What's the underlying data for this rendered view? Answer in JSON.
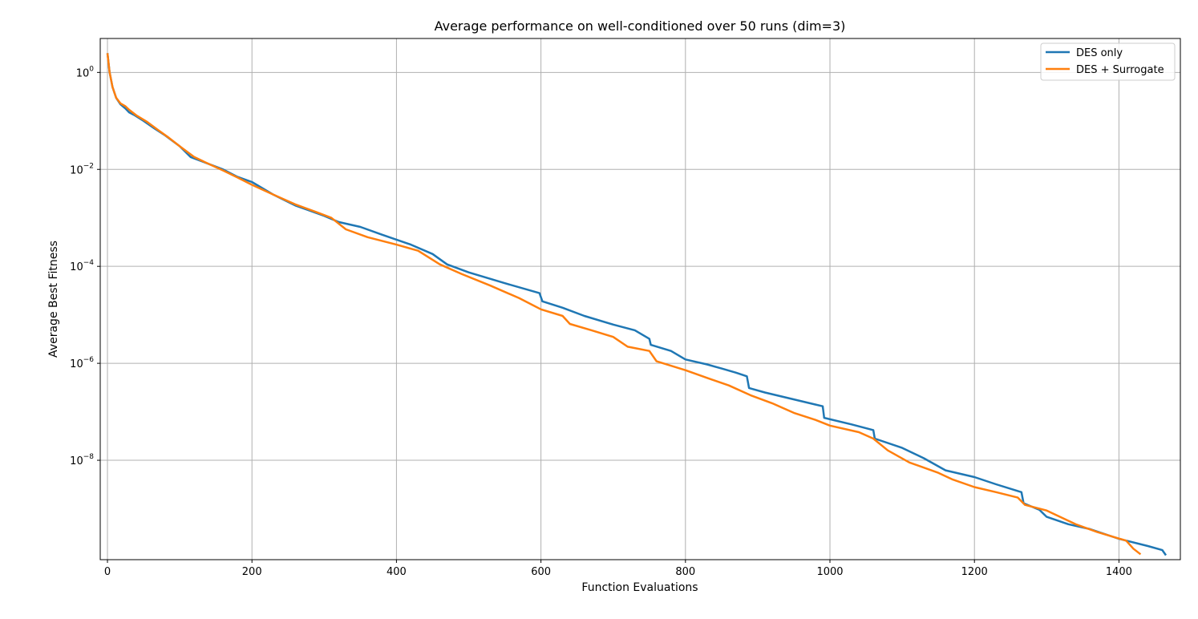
{
  "chart_data": {
    "type": "line",
    "title": "Average performance on well-conditioned over 50 runs (dim=3)",
    "xlabel": "Function Evaluations",
    "ylabel": "Average Best Fitness",
    "xlim": [
      -10,
      1485
    ],
    "ylim_log10": [
      -10.05,
      0.7
    ],
    "yscale": "log",
    "grid": true,
    "legend_position": "top-right",
    "x_ticks": [
      0,
      200,
      400,
      600,
      800,
      1000,
      1200,
      1400
    ],
    "y_ticks": [
      {
        "base": "10",
        "exp": "0",
        "log10": 0
      },
      {
        "base": "10",
        "exp": "−2",
        "log10": -2
      },
      {
        "base": "10",
        "exp": "−4",
        "log10": -4
      },
      {
        "base": "10",
        "exp": "−6",
        "log10": -6
      },
      {
        "base": "10",
        "exp": "−8",
        "log10": -8
      }
    ],
    "series": [
      {
        "name": "DES only",
        "color": "#1f77b4",
        "x": [
          0,
          3,
          7,
          12,
          18,
          25,
          30,
          38,
          50,
          65,
          80,
          100,
          115,
          140,
          160,
          180,
          200,
          230,
          260,
          300,
          320,
          350,
          380,
          420,
          450,
          470,
          500,
          550,
          598,
          602,
          630,
          660,
          700,
          730,
          750,
          752,
          780,
          800,
          830,
          850,
          870,
          885,
          888,
          910,
          950,
          990,
          992,
          1030,
          1060,
          1062,
          1100,
          1130,
          1160,
          1200,
          1230,
          1265,
          1268,
          1290,
          1300,
          1330,
          1360,
          1400,
          1440,
          1460,
          1465
        ],
        "y": [
          2.5,
          1.0,
          0.5,
          0.3,
          0.22,
          0.18,
          0.15,
          0.13,
          0.1,
          0.07,
          0.05,
          0.03,
          0.018,
          0.013,
          0.01,
          0.007,
          0.0055,
          0.003,
          0.0018,
          0.0011,
          0.00082,
          0.00065,
          0.00045,
          0.00028,
          0.00018,
          0.00011,
          7.5e-05,
          4.5e-05,
          2.8e-05,
          1.9e-05,
          1.4e-05,
          9.5e-06,
          6.3e-06,
          4.8e-06,
          3.2e-06,
          2.4e-06,
          1.8e-06,
          1.2e-06,
          9.5e-07,
          7.8e-07,
          6.4e-07,
          5.4e-07,
          3.1e-07,
          2.5e-07,
          1.8e-07,
          1.3e-07,
          7.5e-08,
          5.5e-08,
          4.2e-08,
          2.8e-08,
          1.8e-08,
          1.1e-08,
          6.2e-09,
          4.5e-09,
          3.2e-09,
          2.2e-09,
          1.3e-09,
          9.5e-10,
          6.8e-10,
          4.8e-10,
          3.8e-10,
          2.4e-10,
          1.7e-10,
          1.4e-10,
          1.1e-10
        ]
      },
      {
        "name": "DES + Surrogate",
        "color": "#ff7f0e",
        "x": [
          0,
          3,
          7,
          12,
          18,
          25,
          30,
          40,
          55,
          70,
          85,
          100,
          120,
          140,
          160,
          180,
          200,
          230,
          260,
          290,
          310,
          330,
          360,
          400,
          430,
          460,
          490,
          530,
          570,
          600,
          630,
          640,
          670,
          700,
          720,
          750,
          760,
          800,
          830,
          860,
          890,
          920,
          950,
          980,
          1000,
          1040,
          1060,
          1080,
          1110,
          1150,
          1170,
          1200,
          1230,
          1260,
          1270,
          1300,
          1310,
          1340,
          1370,
          1410,
          1420,
          1430
        ],
        "y": [
          2.5,
          1.0,
          0.5,
          0.3,
          0.23,
          0.2,
          0.17,
          0.13,
          0.095,
          0.065,
          0.045,
          0.03,
          0.018,
          0.013,
          0.0095,
          0.0068,
          0.0048,
          0.003,
          0.0019,
          0.0013,
          0.001,
          0.00058,
          0.0004,
          0.00028,
          0.00021,
          0.00011,
          7e-05,
          4e-05,
          2.2e-05,
          1.3e-05,
          9.5e-06,
          6.5e-06,
          4.8e-06,
          3.5e-06,
          2.2e-06,
          1.8e-06,
          1.1e-06,
          7.2e-07,
          5e-07,
          3.5e-07,
          2.2e-07,
          1.5e-07,
          9.5e-08,
          6.8e-08,
          5.2e-08,
          3.8e-08,
          2.8e-08,
          1.6e-08,
          9e-09,
          5.5e-09,
          4e-09,
          2.8e-09,
          2.2e-09,
          1.7e-09,
          1.2e-09,
          9.2e-10,
          7.8e-10,
          4.8e-10,
          3.3e-10,
          2.2e-10,
          1.5e-10,
          1.15e-10
        ]
      }
    ]
  }
}
